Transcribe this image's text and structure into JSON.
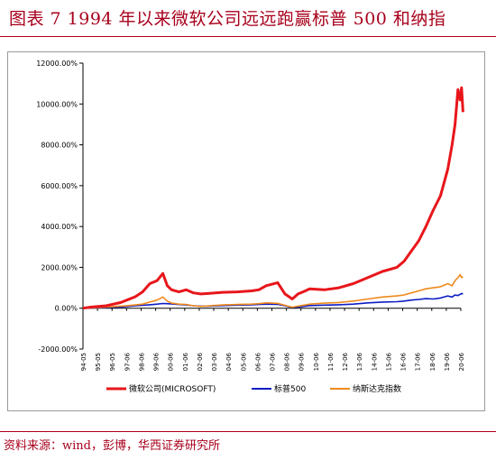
{
  "figure": {
    "title": "图表 7   1994 年以来微软公司远远跑赢标普 500 和纳指",
    "source": "资料来源：wind，彭博，华西证券研究所"
  },
  "colors": {
    "accent": "#b3001b"
  },
  "chart_data": {
    "type": "line",
    "title": "",
    "xlabel": "",
    "ylabel": "",
    "grid": false,
    "legend_position": "bottom",
    "ylim": [
      -2000,
      12000
    ],
    "y_ticks": [
      "12000.00%",
      "10000.00%",
      "8000.00%",
      "6000.00%",
      "4000.00%",
      "2000.00%",
      "0.00%",
      "-2000.00%"
    ],
    "x_ticks": [
      "94-05",
      "95-05",
      "96-05",
      "97-06",
      "98-06",
      "99-06",
      "00-06",
      "01-06",
      "02-06",
      "03-06",
      "04-06",
      "05-06",
      "06-06",
      "07-06",
      "08-06",
      "09-06",
      "10-06",
      "11-06",
      "12-06",
      "13-06",
      "14-06",
      "15-06",
      "16-06",
      "17-06",
      "18-06",
      "19-06",
      "20-06"
    ],
    "x": [
      1994.4,
      1995.0,
      1996.0,
      1997.0,
      1997.5,
      1998.0,
      1998.5,
      1999.0,
      1999.5,
      1999.9,
      2000.2,
      2000.5,
      2001.0,
      2001.5,
      2002.0,
      2002.5,
      2003.0,
      2004.0,
      2005.0,
      2006.0,
      2006.5,
      2007.0,
      2007.8,
      2008.3,
      2008.8,
      2009.2,
      2009.7,
      2010.0,
      2011.0,
      2012.0,
      2013.0,
      2014.0,
      2015.0,
      2016.0,
      2016.5,
      2017.0,
      2017.5,
      2018.0,
      2018.5,
      2019.0,
      2019.5,
      2019.8,
      2020.0,
      2020.2,
      2020.35,
      2020.45,
      2020.55
    ],
    "series": [
      {
        "name": "微软公司(MICROSOFT)",
        "color": "#e8161b",
        "values": [
          0,
          60,
          120,
          280,
          420,
          560,
          800,
          1200,
          1350,
          1700,
          1100,
          900,
          800,
          900,
          750,
          700,
          720,
          780,
          800,
          850,
          900,
          1100,
          1250,
          700,
          450,
          700,
          850,
          950,
          900,
          1000,
          1200,
          1500,
          1800,
          2000,
          2300,
          2800,
          3300,
          4000,
          4800,
          5500,
          6800,
          8000,
          9000,
          10700,
          10200,
          10800,
          9600
        ]
      },
      {
        "name": "标普500",
        "color": "#0b1cc4",
        "values": [
          0,
          10,
          30,
          60,
          90,
          120,
          140,
          170,
          200,
          230,
          220,
          210,
          180,
          160,
          120,
          100,
          100,
          130,
          150,
          170,
          180,
          200,
          190,
          120,
          40,
          60,
          100,
          130,
          150,
          170,
          200,
          260,
          300,
          320,
          350,
          400,
          430,
          470,
          450,
          500,
          600,
          550,
          650,
          620,
          680,
          720,
          700
        ]
      },
      {
        "name": "纳斯达克指数",
        "color": "#f08a1e",
        "values": [
          0,
          20,
          60,
          100,
          130,
          160,
          200,
          300,
          400,
          550,
          350,
          250,
          200,
          180,
          120,
          90,
          110,
          160,
          180,
          200,
          220,
          260,
          240,
          140,
          50,
          100,
          160,
          200,
          250,
          280,
          350,
          450,
          550,
          600,
          650,
          750,
          850,
          950,
          1000,
          1050,
          1200,
          1100,
          1350,
          1500,
          1650,
          1500,
          1550
        ]
      }
    ]
  }
}
